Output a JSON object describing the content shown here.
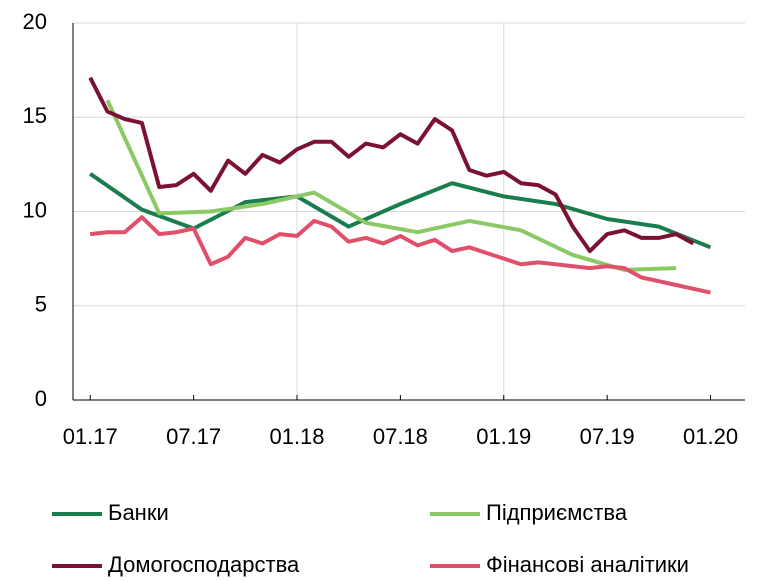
{
  "chart_data": {
    "type": "line",
    "ylim": [
      0,
      20
    ],
    "yticks": [
      0,
      5,
      10,
      15,
      20
    ],
    "xlim": [
      "2016-12",
      "2020-03"
    ],
    "xticks": [
      {
        "value": "2017-01",
        "label": "01.17"
      },
      {
        "value": "2017-07",
        "label": "07.17"
      },
      {
        "value": "2018-01",
        "label": "01.18"
      },
      {
        "value": "2018-07",
        "label": "07.18"
      },
      {
        "value": "2019-01",
        "label": "01.19"
      },
      {
        "value": "2019-07",
        "label": "07.19"
      },
      {
        "value": "2020-01",
        "label": "01.20"
      }
    ],
    "grid": true,
    "series": [
      {
        "name": "Банки",
        "color": "#1a7d4e",
        "x": [
          "2017-01",
          "2017-04",
          "2017-07",
          "2017-10",
          "2018-01",
          "2018-04",
          "2018-07",
          "2018-10",
          "2019-01",
          "2019-04",
          "2019-07",
          "2019-10",
          "2020-01"
        ],
        "values": [
          12.0,
          10.1,
          9.1,
          10.5,
          10.8,
          9.2,
          10.4,
          11.5,
          10.8,
          10.4,
          9.6,
          9.2,
          8.1
        ]
      },
      {
        "name": "Підприємства",
        "color": "#8dc866",
        "x": [
          "2017-02",
          "2017-05",
          "2017-08",
          "2017-11",
          "2018-02",
          "2018-05",
          "2018-08",
          "2018-11",
          "2019-02",
          "2019-05",
          "2019-08",
          "2019-11"
        ],
        "values": [
          15.9,
          9.9,
          10.0,
          10.4,
          11.0,
          9.4,
          8.9,
          9.5,
          9.0,
          7.7,
          6.9,
          7.0
        ]
      },
      {
        "name": "Домогосподарства",
        "color": "#7b1232",
        "x": [
          "2017-01",
          "2017-02",
          "2017-03",
          "2017-04",
          "2017-05",
          "2017-06",
          "2017-07",
          "2017-08",
          "2017-09",
          "2017-10",
          "2017-11",
          "2017-12",
          "2018-01",
          "2018-02",
          "2018-03",
          "2018-04",
          "2018-05",
          "2018-06",
          "2018-07",
          "2018-08",
          "2018-09",
          "2018-10",
          "2018-11",
          "2018-12",
          "2019-01",
          "2019-02",
          "2019-03",
          "2019-04",
          "2019-05",
          "2019-06",
          "2019-07",
          "2019-08",
          "2019-09",
          "2019-10",
          "2019-11",
          "2019-12"
        ],
        "values": [
          17.1,
          15.3,
          14.9,
          14.7,
          11.3,
          11.4,
          12.0,
          11.1,
          12.7,
          12.0,
          13.0,
          12.6,
          13.3,
          13.7,
          13.7,
          12.9,
          13.6,
          13.4,
          14.1,
          13.6,
          14.9,
          14.3,
          12.2,
          11.9,
          12.1,
          11.5,
          11.4,
          10.9,
          9.2,
          7.9,
          8.8,
          9.0,
          8.6,
          8.6,
          8.8,
          8.3
        ]
      },
      {
        "name": "Фінансові аналітики",
        "color": "#e0506a",
        "x": [
          "2017-01",
          "2017-02",
          "2017-03",
          "2017-04",
          "2017-05",
          "2017-06",
          "2017-07",
          "2017-08",
          "2017-09",
          "2017-10",
          "2017-11",
          "2017-12",
          "2018-01",
          "2018-02",
          "2018-03",
          "2018-04",
          "2018-05",
          "2018-06",
          "2018-07",
          "2018-08",
          "2018-09",
          "2018-10",
          "2018-11",
          "2018-12",
          "2019-01",
          "2019-02",
          "2019-03",
          "2019-04",
          "2019-05",
          "2019-06",
          "2019-07",
          "2019-08",
          "2019-09",
          "2019-10",
          "2019-11",
          "2019-12",
          "2020-01"
        ],
        "values": [
          8.8,
          8.9,
          8.9,
          9.7,
          8.8,
          8.9,
          9.1,
          7.2,
          7.6,
          8.6,
          8.3,
          8.8,
          8.7,
          9.5,
          9.2,
          8.4,
          8.6,
          8.3,
          8.7,
          8.2,
          8.5,
          7.9,
          8.1,
          7.8,
          7.5,
          7.2,
          7.3,
          7.2,
          7.1,
          7.0,
          7.1,
          7.0,
          6.5,
          6.3,
          6.1,
          5.9,
          5.7
        ]
      }
    ]
  }
}
